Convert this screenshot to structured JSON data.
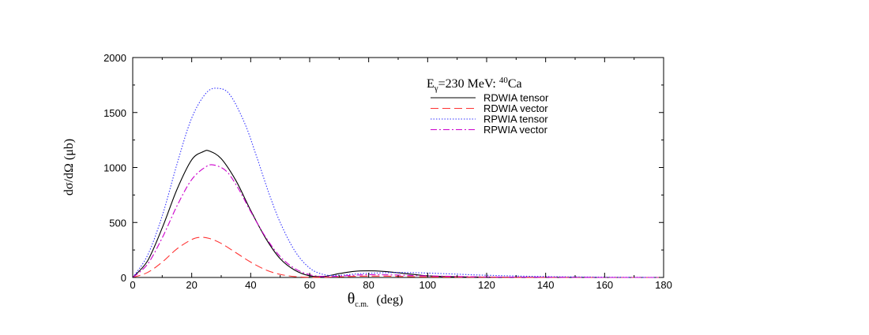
{
  "chart_data": {
    "type": "line",
    "annotation": {
      "E": "E",
      "gamma": "γ",
      "energy": "=230 MeV: ",
      "mass": "40",
      "element": "Ca"
    },
    "xlabel": {
      "theta": "θ",
      "sub": "c.m.",
      "unit": "(deg)"
    },
    "ylabel": "dσ/dΩ (μb)",
    "xlim": [
      0,
      180
    ],
    "ylim": [
      0,
      2000
    ],
    "xticks": [
      0,
      20,
      40,
      60,
      80,
      100,
      120,
      140,
      160,
      180
    ],
    "yticks": [
      0,
      500,
      1000,
      1500,
      2000
    ],
    "grid": false,
    "legend_position": "top-right",
    "series": [
      {
        "name": "RDWIA tensor",
        "color": "#000000",
        "dash": "solid",
        "x": [
          0,
          5,
          10,
          15,
          20,
          24,
          26,
          30,
          35,
          40,
          45,
          50,
          55,
          60,
          65,
          70,
          75,
          80,
          85,
          90,
          95,
          100,
          110,
          120,
          140,
          160,
          180
        ],
        "y": [
          0,
          150,
          450,
          800,
          1070,
          1145,
          1150,
          1080,
          880,
          610,
          360,
          170,
          65,
          15,
          10,
          35,
          55,
          60,
          55,
          42,
          28,
          15,
          6,
          3,
          1,
          0,
          0
        ]
      },
      {
        "name": "RDWIA vector",
        "color": "#ff3333",
        "dash": "long-dash",
        "x": [
          0,
          5,
          10,
          15,
          20,
          23,
          26,
          30,
          35,
          40,
          45,
          50,
          55,
          60,
          65,
          70,
          80,
          90,
          100,
          120,
          140,
          180
        ],
        "y": [
          0,
          45,
          140,
          260,
          345,
          365,
          355,
          310,
          225,
          140,
          70,
          28,
          8,
          2,
          2,
          6,
          12,
          10,
          5,
          2,
          0,
          0
        ]
      },
      {
        "name": "RPWIA tensor",
        "color": "#3333ff",
        "dash": "dotted",
        "x": [
          0,
          5,
          10,
          15,
          20,
          25,
          29,
          33,
          38,
          42,
          46,
          50,
          55,
          60,
          65,
          70,
          75,
          80,
          90,
          100,
          110,
          120,
          140,
          160,
          180
        ],
        "y": [
          0,
          200,
          560,
          1030,
          1450,
          1680,
          1720,
          1660,
          1400,
          1100,
          780,
          500,
          240,
          85,
          25,
          20,
          30,
          38,
          45,
          40,
          30,
          20,
          8,
          3,
          0
        ]
      },
      {
        "name": "RPWIA vector",
        "color": "#cc00cc",
        "dash": "dash-dot",
        "x": [
          0,
          5,
          10,
          15,
          20,
          25,
          28,
          32,
          36,
          40,
          45,
          50,
          55,
          60,
          65,
          70,
          75,
          80,
          90,
          100,
          120,
          140,
          160,
          180
        ],
        "y": [
          0,
          120,
          360,
          650,
          890,
          1010,
          1020,
          960,
          800,
          600,
          370,
          190,
          80,
          25,
          8,
          12,
          20,
          25,
          22,
          14,
          5,
          2,
          0,
          0
        ]
      }
    ]
  }
}
